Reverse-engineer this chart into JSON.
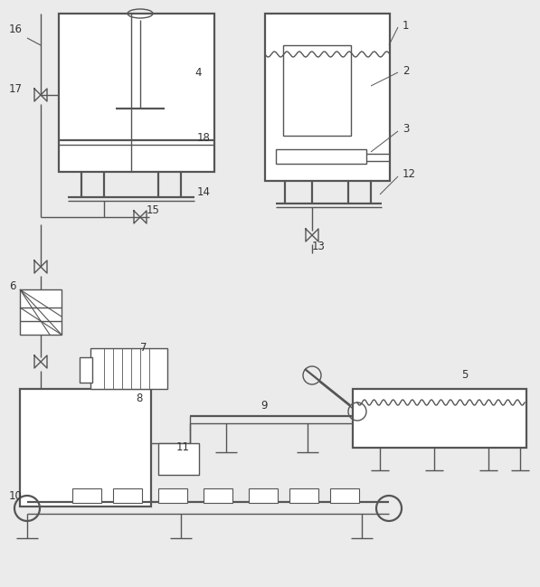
{
  "bg_color": "#ebebeb",
  "line_color": "#555555",
  "lw": 1.0,
  "lw2": 1.6,
  "label_fontsize": 8.5
}
